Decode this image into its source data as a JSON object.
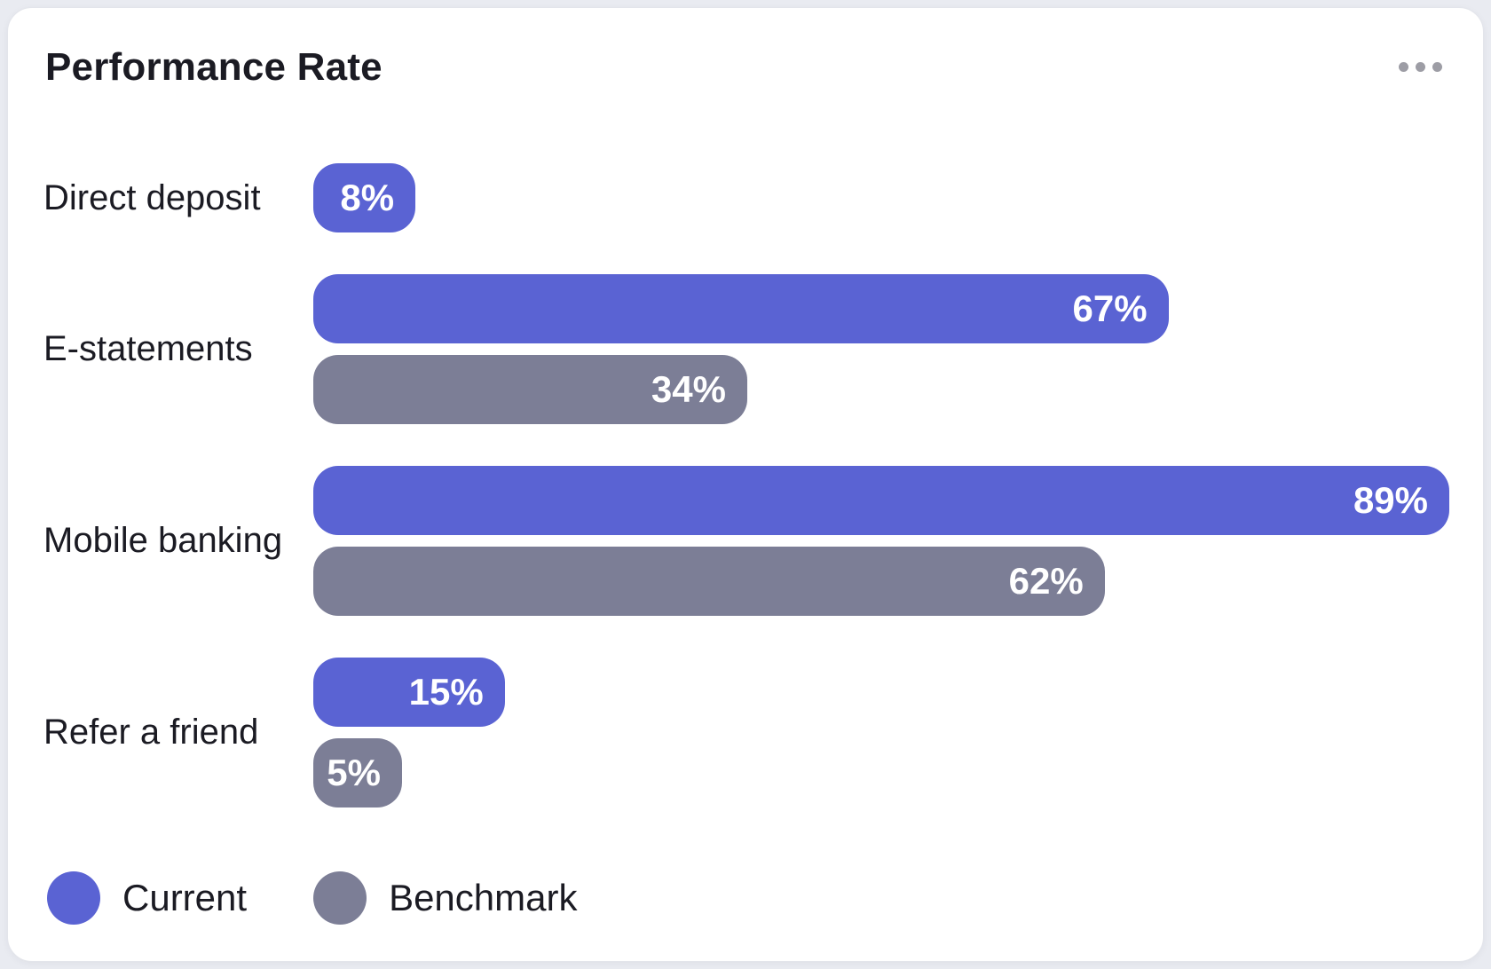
{
  "card": {
    "title": "Performance Rate",
    "menu_icon": "ellipsis-menu-icon"
  },
  "colors": {
    "current": "#5a63d3",
    "benchmark": "#7c7e96",
    "card_bg": "#ffffff",
    "page_bg": "#e9ebf1",
    "value_text": "#ffffff",
    "label_text": "#1b1b23"
  },
  "chart_data": {
    "type": "bar",
    "orientation": "horizontal",
    "title": "Performance Rate",
    "categories": [
      "Direct deposit",
      "E-statements",
      "Mobile banking",
      "Refer a friend"
    ],
    "series": [
      {
        "name": "Current",
        "color": "#5a63d3",
        "values": [
          8,
          67,
          89,
          15
        ]
      },
      {
        "name": "Benchmark",
        "color": "#7c7e96",
        "values": [
          null,
          34,
          62,
          5
        ]
      }
    ],
    "value_suffix": "%",
    "xlim": [
      0,
      100
    ],
    "grid": false,
    "axis_labels": false,
    "value_labels_position": "inside-end",
    "legend_position": "bottom-left"
  },
  "legend": [
    {
      "label": "Current",
      "color": "#5a63d3"
    },
    {
      "label": "Benchmark",
      "color": "#7c7e96"
    }
  ]
}
